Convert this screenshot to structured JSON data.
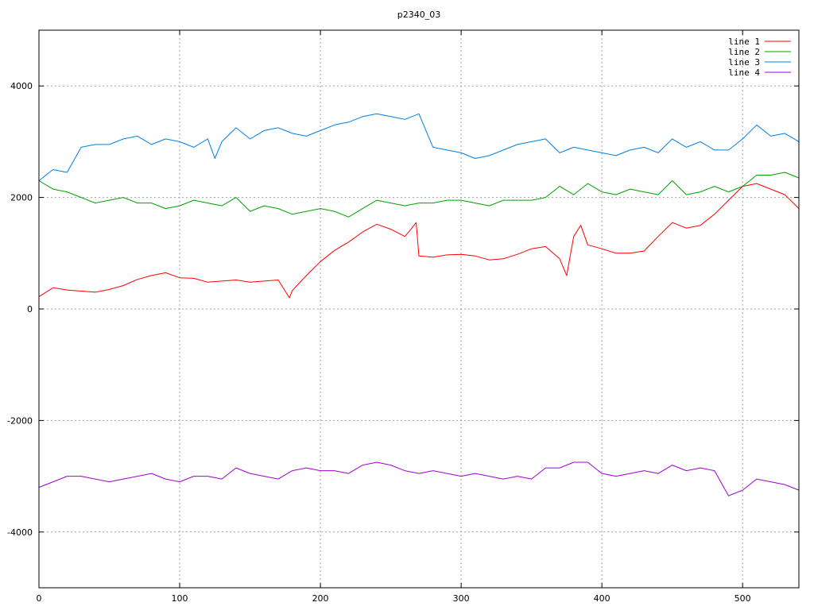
{
  "chart_data": {
    "type": "line",
    "title": "p2340_03",
    "xlabel": "",
    "ylabel": "",
    "xlim": [
      0,
      540
    ],
    "ylim": [
      -5000,
      5000
    ],
    "x_ticks": [
      0,
      100,
      200,
      300,
      400,
      500
    ],
    "y_ticks": [
      -4000,
      -2000,
      0,
      2000,
      4000
    ],
    "x_tick_labels": [
      "0",
      "100",
      "200",
      "300",
      "400",
      "500"
    ],
    "y_tick_labels": [
      "-4000",
      "-2000",
      "0",
      "2000",
      "4000"
    ],
    "grid": true,
    "legend_position": "top-right",
    "series": [
      {
        "name": "line 1",
        "color": "#ff0000",
        "x": [
          0,
          10,
          20,
          30,
          40,
          50,
          60,
          70,
          80,
          90,
          100,
          110,
          120,
          130,
          140,
          150,
          160,
          170,
          178,
          180,
          190,
          200,
          210,
          220,
          230,
          240,
          250,
          260,
          265,
          268,
          270,
          280,
          290,
          300,
          310,
          320,
          330,
          340,
          350,
          360,
          370,
          375,
          380,
          385,
          390,
          400,
          410,
          420,
          430,
          440,
          450,
          460,
          470,
          480,
          490,
          500,
          510,
          520,
          530,
          540
        ],
        "y": [
          220,
          380,
          340,
          320,
          300,
          350,
          420,
          530,
          600,
          650,
          560,
          550,
          480,
          500,
          520,
          480,
          500,
          520,
          200,
          330,
          600,
          850,
          1050,
          1200,
          1380,
          1520,
          1430,
          1300,
          1450,
          1550,
          950,
          930,
          970,
          980,
          950,
          880,
          900,
          980,
          1080,
          1120,
          900,
          600,
          1300,
          1500,
          1150,
          1080,
          1000,
          1000,
          1040,
          1300,
          1550,
          1450,
          1500,
          1700,
          1950,
          2200,
          2250,
          2150,
          2050,
          1800
        ]
      },
      {
        "name": "line 2",
        "color": "#00a000",
        "x": [
          0,
          10,
          20,
          30,
          40,
          50,
          60,
          70,
          80,
          90,
          100,
          110,
          120,
          130,
          140,
          150,
          160,
          170,
          180,
          190,
          200,
          210,
          220,
          230,
          240,
          250,
          260,
          270,
          280,
          290,
          300,
          310,
          320,
          330,
          340,
          350,
          360,
          370,
          380,
          390,
          400,
          410,
          420,
          430,
          440,
          450,
          460,
          470,
          480,
          490,
          500,
          510,
          520,
          530,
          540
        ],
        "y": [
          2300,
          2150,
          2100,
          2000,
          1900,
          1950,
          2000,
          1900,
          1900,
          1800,
          1850,
          1950,
          1900,
          1850,
          2000,
          1750,
          1850,
          1800,
          1700,
          1750,
          1800,
          1750,
          1650,
          1800,
          1950,
          1900,
          1850,
          1900,
          1900,
          1950,
          1950,
          1900,
          1850,
          1950,
          1950,
          1950,
          2000,
          2200,
          2050,
          2250,
          2100,
          2050,
          2150,
          2100,
          2050,
          2300,
          2050,
          2100,
          2200,
          2100,
          2200,
          2400,
          2400,
          2450,
          2350
        ]
      },
      {
        "name": "line 3",
        "color": "#0080e0",
        "x": [
          0,
          10,
          20,
          30,
          40,
          50,
          60,
          70,
          80,
          90,
          100,
          110,
          120,
          125,
          130,
          140,
          150,
          160,
          170,
          180,
          190,
          200,
          210,
          220,
          230,
          240,
          250,
          260,
          270,
          280,
          290,
          300,
          310,
          320,
          330,
          340,
          350,
          360,
          370,
          380,
          390,
          400,
          410,
          420,
          430,
          440,
          450,
          460,
          470,
          480,
          490,
          500,
          510,
          520,
          530,
          540
        ],
        "y": [
          2300,
          2500,
          2450,
          2900,
          2950,
          2950,
          3050,
          3100,
          2950,
          3050,
          3000,
          2900,
          3050,
          2700,
          3000,
          3250,
          3050,
          3200,
          3250,
          3150,
          3100,
          3200,
          3300,
          3350,
          3450,
          3500,
          3450,
          3400,
          3500,
          2900,
          2850,
          2800,
          2700,
          2750,
          2850,
          2950,
          3000,
          3050,
          2800,
          2900,
          2850,
          2800,
          2750,
          2850,
          2900,
          2800,
          3050,
          2900,
          3000,
          2850,
          2850,
          3050,
          3300,
          3100,
          3150,
          3000
        ]
      },
      {
        "name": "line 4",
        "color": "#a000d0",
        "x": [
          0,
          10,
          20,
          30,
          40,
          50,
          60,
          70,
          80,
          90,
          100,
          110,
          120,
          130,
          140,
          150,
          160,
          170,
          180,
          190,
          200,
          210,
          220,
          230,
          240,
          250,
          260,
          270,
          280,
          290,
          300,
          310,
          320,
          330,
          340,
          350,
          360,
          370,
          380,
          390,
          400,
          410,
          420,
          430,
          440,
          450,
          460,
          470,
          480,
          490,
          500,
          510,
          520,
          530,
          540
        ],
        "y": [
          -3200,
          -3100,
          -3000,
          -3000,
          -3050,
          -3100,
          -3050,
          -3000,
          -2950,
          -3050,
          -3100,
          -3000,
          -3000,
          -3050,
          -2850,
          -2950,
          -3000,
          -3050,
          -2900,
          -2850,
          -2900,
          -2900,
          -2950,
          -2800,
          -2750,
          -2800,
          -2900,
          -2950,
          -2900,
          -2950,
          -3000,
          -2950,
          -3000,
          -3050,
          -3000,
          -3050,
          -2850,
          -2850,
          -2750,
          -2750,
          -2950,
          -3000,
          -2950,
          -2900,
          -2950,
          -2800,
          -2900,
          -2850,
          -2900,
          -3350,
          -3250,
          -3050,
          -3100,
          -3150,
          -3250
        ]
      }
    ]
  }
}
